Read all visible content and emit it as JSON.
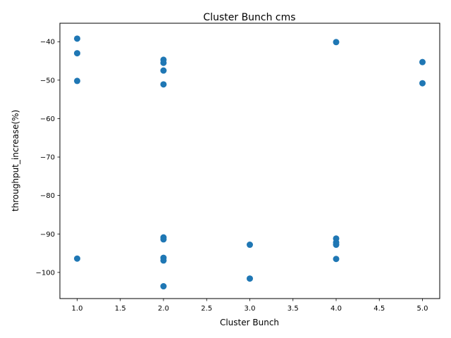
{
  "chart_data": {
    "type": "scatter",
    "title": "Cluster Bunch cms",
    "xlabel": "Cluster Bunch",
    "ylabel": "throughput_increase(%)",
    "xlim": [
      0.8,
      5.2
    ],
    "ylim": [
      -106.8,
      -35.2
    ],
    "xticks": [
      "1.0",
      "1.5",
      "2.0",
      "2.5",
      "3.0",
      "3.5",
      "4.0",
      "4.5",
      "5.0"
    ],
    "xtick_values": [
      1.0,
      1.5,
      2.0,
      2.5,
      3.0,
      3.5,
      4.0,
      4.5,
      5.0
    ],
    "yticks": [
      "−100",
      "−90",
      "−80",
      "−70",
      "−60",
      "−50",
      "−40"
    ],
    "ytick_values": [
      -100,
      -90,
      -80,
      -70,
      -60,
      -50,
      -40
    ],
    "grid": false,
    "marker_color": "#1f77b4",
    "points": [
      {
        "x": 1,
        "y": -39.2
      },
      {
        "x": 1,
        "y": -43.0
      },
      {
        "x": 1,
        "y": -50.2
      },
      {
        "x": 1,
        "y": -96.4
      },
      {
        "x": 2,
        "y": -44.7
      },
      {
        "x": 2,
        "y": -45.5
      },
      {
        "x": 2,
        "y": -47.5
      },
      {
        "x": 2,
        "y": -51.1
      },
      {
        "x": 2,
        "y": -90.9
      },
      {
        "x": 2,
        "y": -91.4
      },
      {
        "x": 2,
        "y": -96.2
      },
      {
        "x": 2,
        "y": -96.9
      },
      {
        "x": 2,
        "y": -103.6
      },
      {
        "x": 3,
        "y": -92.8
      },
      {
        "x": 3,
        "y": -101.6
      },
      {
        "x": 4,
        "y": -40.1
      },
      {
        "x": 4,
        "y": -91.2
      },
      {
        "x": 4,
        "y": -92.2
      },
      {
        "x": 4,
        "y": -92.8
      },
      {
        "x": 4,
        "y": -96.5
      },
      {
        "x": 5,
        "y": -45.3
      },
      {
        "x": 5,
        "y": -50.8
      }
    ]
  }
}
